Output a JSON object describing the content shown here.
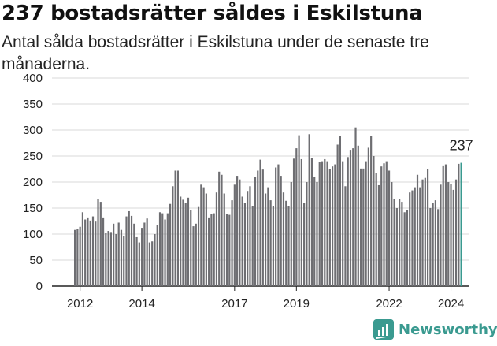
{
  "title": "237 bostadsrätter såldes i Eskilstuna",
  "subtitle": "Antal sålda bostadsrätter i Eskilstuna under de senaste tre månaderna.",
  "brand": {
    "name": "Newsworthy",
    "icon": "newsworthy-logo-icon"
  },
  "colors": {
    "bar": "#6e6e72",
    "highlight": "#3a9a90",
    "grid": "#d9d9d9",
    "axis": "#222222"
  },
  "chart_data": {
    "type": "bar",
    "title": "237 bostadsrätter såldes i Eskilstuna",
    "subtitle": "Antal sålda bostadsrätter i Eskilstuna under de senaste tre månaderna.",
    "xlabel": "",
    "ylabel": "",
    "ylim": [
      0,
      400
    ],
    "yticks": [
      0,
      50,
      100,
      150,
      200,
      250,
      300,
      350,
      400
    ],
    "grid": true,
    "legend": "none",
    "start": "2011-11",
    "xticks": [
      {
        "label": "2012",
        "month": "2012-01"
      },
      {
        "label": "2014",
        "month": "2014-01"
      },
      {
        "label": "2017",
        "month": "2017-01"
      },
      {
        "label": "2019",
        "month": "2019-01"
      },
      {
        "label": "2022",
        "month": "2022-01"
      },
      {
        "label": "2024",
        "month": "2024-01"
      }
    ],
    "values": [
      108,
      110,
      114,
      142,
      128,
      132,
      126,
      134,
      124,
      168,
      162,
      132,
      102,
      106,
      104,
      120,
      100,
      122,
      108,
      96,
      134,
      144,
      135,
      120,
      94,
      84,
      112,
      122,
      130,
      84,
      86,
      100,
      118,
      142,
      140,
      128,
      140,
      158,
      192,
      222,
      222,
      172,
      166,
      160,
      170,
      146,
      115,
      120,
      152,
      195,
      190,
      178,
      132,
      138,
      140,
      180,
      220,
      214,
      178,
      138,
      137,
      165,
      195,
      212,
      205,
      172,
      160,
      183,
      192,
      153,
      210,
      222,
      243,
      224,
      178,
      190,
      165,
      154,
      228,
      234,
      212,
      180,
      164,
      154,
      200,
      245,
      265,
      290,
      244,
      160,
      200,
      292,
      246,
      210,
      200,
      238,
      240,
      244,
      240,
      225,
      230,
      234,
      272,
      288,
      240,
      192,
      248,
      262,
      265,
      305,
      270,
      226,
      226,
      240,
      266,
      288,
      250,
      218,
      194,
      230,
      236,
      240,
      222,
      200,
      168,
      150,
      168,
      162,
      142,
      146,
      180,
      184,
      190,
      214,
      190,
      205,
      208,
      225,
      150,
      160,
      165,
      148,
      195,
      232,
      234,
      200,
      196,
      185,
      205,
      235,
      237
    ],
    "annotation": {
      "text": "237",
      "index": 150
    }
  }
}
